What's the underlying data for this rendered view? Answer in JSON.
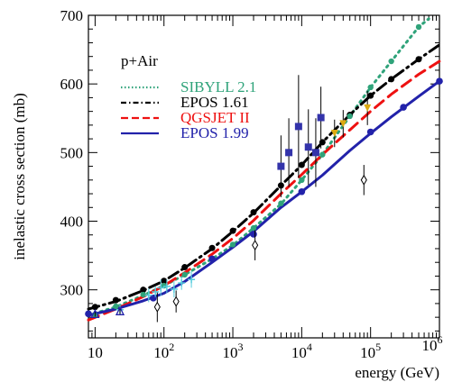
{
  "chart_data": {
    "type": "line",
    "title": "",
    "annotation": "p+Air",
    "xlabel": "energy (GeV)",
    "ylabel": "inelastic cross section (mb)",
    "x_scale": "log",
    "xlim": [
      8,
      1000000
    ],
    "ylim": [
      230,
      700
    ],
    "y_ticks": [
      300,
      400,
      500,
      600,
      700
    ],
    "x_ticks": [
      {
        "value": 10,
        "base": "10",
        "exp": ""
      },
      {
        "value": 100,
        "base": "10",
        "exp": "2"
      },
      {
        "value": 1000,
        "base": "10",
        "exp": "3"
      },
      {
        "value": 10000,
        "base": "10",
        "exp": "4"
      },
      {
        "value": 100000,
        "base": "10",
        "exp": "5"
      },
      {
        "value": 1000000,
        "base": "10",
        "exp": "6"
      }
    ],
    "grid": false,
    "legend_position": "top-left",
    "series": [
      {
        "name": "SIBYLL 2.1",
        "color": "#2fa37a",
        "style": "dotted",
        "x": [
          8,
          20,
          50,
          100,
          200,
          500,
          1000,
          2000,
          5000,
          10000,
          20000,
          50000,
          100000,
          200000,
          500000,
          700000
        ],
        "y": [
          263,
          275,
          292,
          306,
          322,
          345,
          365,
          390,
          425,
          460,
          497,
          553,
          595,
          633,
          683,
          695
        ]
      },
      {
        "name": "EPOS 1.61",
        "color": "#000000",
        "style": "dashdot",
        "x": [
          8,
          20,
          50,
          100,
          200,
          500,
          1000,
          2000,
          5000,
          10000,
          20000,
          50000,
          100000,
          200000,
          500000,
          1000000
        ],
        "y": [
          272,
          283,
          299,
          313,
          332,
          360,
          385,
          412,
          452,
          482,
          515,
          555,
          583,
          607,
          636,
          657
        ]
      },
      {
        "name": "QGSJET II",
        "color": "#ee1111",
        "style": "dashed",
        "x": [
          8,
          20,
          50,
          100,
          200,
          500,
          1000,
          2000,
          5000,
          10000,
          20000,
          50000,
          100000,
          200000,
          500000,
          1000000
        ],
        "y": [
          256,
          272,
          290,
          306,
          325,
          352,
          375,
          401,
          440,
          468,
          497,
          533,
          560,
          585,
          614,
          633
        ]
      },
      {
        "name": "EPOS 1.99",
        "color": "#2222aa",
        "style": "solid",
        "x": [
          8,
          20,
          50,
          100,
          200,
          500,
          1000,
          2000,
          5000,
          10000,
          20000,
          50000,
          100000,
          200000,
          500000,
          1000000
        ],
        "y": [
          263,
          272,
          284,
          295,
          312,
          340,
          362,
          385,
          420,
          443,
          467,
          503,
          528,
          552,
          582,
          604
        ]
      }
    ],
    "marker_series": [
      {
        "x": [
          10,
          20,
          50,
          100,
          200,
          500,
          1000,
          2000,
          5000,
          10000,
          20000,
          50000,
          100000,
          200000,
          500000
        ],
        "y": [
          275,
          285,
          300,
          313,
          333,
          361,
          386,
          413,
          452,
          482,
          515,
          555,
          583,
          607,
          636
        ],
        "color": "#000000",
        "marker": "circle-filled",
        "size": 3.5
      },
      {
        "x": [
          10,
          20,
          50,
          100,
          200,
          500,
          1000,
          2000,
          5000,
          10000,
          20000,
          50000,
          100000,
          200000,
          500000
        ],
        "y": [
          264,
          276,
          293,
          306,
          322,
          345,
          366,
          390,
          426,
          460,
          497,
          553,
          595,
          633,
          683
        ],
        "color": "#2fa37a",
        "marker": "circle-filled",
        "size": 3.2
      },
      {
        "x": [
          8,
          70,
          500,
          2000,
          10000,
          100000,
          300000,
          1000000
        ],
        "y": [
          265,
          288,
          345,
          381,
          443,
          530,
          566,
          604
        ],
        "color": "#2222aa",
        "marker": "circle-filled",
        "size": 3.8
      },
      {
        "x": [
          5000,
          6500,
          9000,
          12500,
          16000,
          19000
        ],
        "y": [
          480,
          500,
          538,
          508,
          500,
          551
        ],
        "yerr": [
          45,
          50,
          75,
          55,
          50,
          45
        ],
        "color": "#3333aa",
        "marker": "square-filled",
        "size": 4
      },
      {
        "x": [
          30000,
          40000,
          90000
        ],
        "y": [
          528,
          542,
          565
        ],
        "yerr": [
          20,
          20,
          25
        ],
        "color": "#ddaa11",
        "marker": "triangle-down",
        "size": 4
      },
      {
        "x": [
          80,
          150,
          2100,
          80000
        ],
        "y": [
          275,
          283,
          365,
          460
        ],
        "yerr": [
          22,
          16,
          22,
          22
        ],
        "color": "#000000",
        "marker": "diamond-open",
        "size": 4
      },
      {
        "x": [
          23,
          60,
          75,
          90,
          110,
          140,
          180,
          250
        ],
        "y": [
          271,
          292,
          297,
          303,
          305,
          301,
          310,
          315
        ],
        "yerr": [
          8,
          10,
          8,
          12,
          10,
          12,
          10,
          12
        ],
        "color": "#55ccdd",
        "marker": "cross",
        "size": 4
      },
      {
        "x": [
          10,
          23
        ],
        "y": [
          265,
          269
        ],
        "yerr": [
          4,
          5
        ],
        "color": "#2222aa",
        "marker": "triangle-open",
        "size": 4
      }
    ]
  }
}
